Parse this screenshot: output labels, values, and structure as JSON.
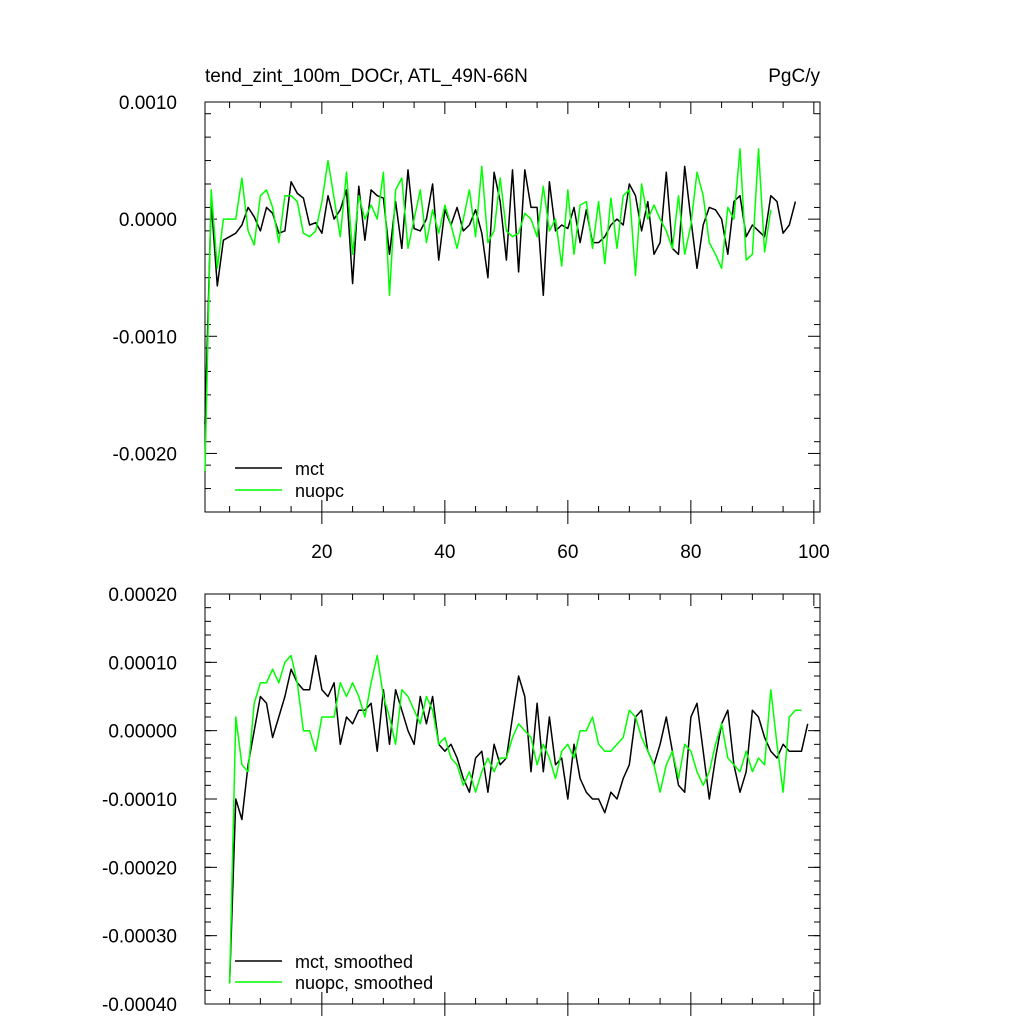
{
  "chart_data": [
    {
      "type": "line",
      "title": "tend_zint_100m_DOCr, ATL_49N-66N",
      "units": "PgC/y",
      "xlim": [
        1,
        101
      ],
      "ylim": [
        -0.0025,
        0.001
      ],
      "xticks": [
        20,
        40,
        60,
        80,
        100
      ],
      "xtick_labels": [
        "20",
        "40",
        "60",
        "80",
        "100"
      ],
      "yticks": [
        0.001,
        0,
        -0.001,
        -0.002
      ],
      "ytick_labels": [
        "0.0010",
        "0.0000",
        "-0.0010",
        "-0.0020"
      ],
      "legend": [
        "mct",
        "nuopc"
      ],
      "legend_position": "bottom-left",
      "series": [
        {
          "name": "mct",
          "color": "#000000",
          "values": [
            -0.00175,
            0.00015,
            -0.00057,
            -0.00018,
            -0.00015,
            -0.00012,
            -5e-05,
            0.0001,
            2e-05,
            -0.0001,
            0.0001,
            5e-05,
            -0.00012,
            -0.0001,
            0.00032,
            0.00022,
            0.00018,
            -5e-05,
            -3e-05,
            -0.00012,
            0.0002,
            0.0,
            8e-05,
            0.00025,
            -0.00055,
            0.00028,
            -0.00018,
            0.00025,
            0.0002,
            0.00018,
            -0.0003,
            0.00015,
            -0.00025,
            0.00042,
            -8e-05,
            -0.0001,
            0.0,
            0.0003,
            -0.00035,
            8e-05,
            -5e-05,
            0.0001,
            -0.0001,
            -5e-05,
            8e-05,
            -0.00012,
            -0.0005,
            0.0004,
            0.00015,
            -0.00035,
            0.00042,
            -0.00045,
            0.00042,
            0.0001,
            0.0001,
            -0.00065,
            0.00032,
            -0.0001,
            -5e-05,
            -8e-05,
            0.0001,
            -0.0002,
            8e-05,
            -0.0002,
            -0.0002,
            -0.00015,
            -5e-05,
            0.0,
            -5e-05,
            0.0003,
            0.0002,
            -0.0001,
            0.00015,
            -0.0003,
            -0.0002,
            0.0004,
            -0.00025,
            -0.0003,
            0.00045,
            0.0,
            -0.00042,
            -5e-05,
            0.0001,
            8e-05,
            0.0,
            -0.0003,
            0.00015,
            0.0002,
            -0.00015,
            -5e-05,
            -0.0001,
            -0.00015,
            0.0002,
            0.00015,
            -0.00012,
            -5e-05,
            0.00015
          ]
        },
        {
          "name": "nuopc",
          "color": "#00ff00",
          "values": [
            -0.00215,
            0.00025,
            -0.00042,
            0.0,
            0.0,
            0.0,
            0.00035,
            -0.0001,
            -0.00022,
            0.0002,
            0.00025,
            0.0001,
            -0.0002,
            0.0002,
            0.0002,
            0.00015,
            -0.00012,
            -0.00015,
            -0.0001,
            0.00015,
            0.0005,
            0.00018,
            -0.00015,
            0.0004,
            -0.0003,
            0.0002,
            0.0,
            0.00012,
            0.0,
            0.0004,
            -0.00065,
            0.00025,
            0.00035,
            -0.00025,
            0.0,
            0.00025,
            -0.0002,
            8e-05,
            -0.00012,
            0.00012,
            -5e-05,
            -0.00025,
            0.0,
            0.00025,
            -0.00015,
            0.00045,
            -0.0002,
            -0.0001,
            0.00035,
            -0.0001,
            -0.00015,
            -0.00012,
            5e-05,
            0.0,
            -0.00015,
            0.00028,
            -0.0001,
            0.0,
            -0.0004,
            0.00025,
            -0.0003,
            0.00012,
            0.00015,
            -0.00025,
            0.00015,
            -0.00038,
            0.00018,
            -0.00025,
            0.0002,
            0.00025,
            -0.00048,
            0.0003,
            0.0,
            0.00012,
            0.0,
            -0.0001,
            -0.00025,
            0.0002,
            -0.0003,
            -5e-05,
            0.0004,
            0.0002,
            -0.0002,
            -0.0003,
            -0.00042,
            0.0001,
            0.0,
            0.0006,
            -0.00035,
            -0.0003,
            0.0006,
            -0.00028,
            8e-05
          ]
        }
      ]
    },
    {
      "type": "line",
      "xlim": [
        1,
        101
      ],
      "ylim": [
        -0.0004,
        0.0002
      ],
      "xticks": [
        20,
        40,
        60,
        80,
        100
      ],
      "yticks": [
        0.0002,
        0.0001,
        0,
        -0.0001,
        -0.0002,
        -0.0003,
        -0.0004
      ],
      "ytick_labels": [
        "0.00020",
        "0.00010",
        "0.00000",
        "-0.00010",
        "-0.00020",
        "-0.00030",
        "-0.00040"
      ],
      "legend": [
        "mct, smoothed",
        "nuopc, smoothed"
      ],
      "legend_position": "bottom-left",
      "series": [
        {
          "name": "mct, smoothed",
          "color": "#000000",
          "x_start": 5,
          "values": [
            -0.00037,
            -0.0001,
            -0.00013,
            -5e-05,
            0.0,
            5e-05,
            4e-05,
            -1e-05,
            2e-05,
            5e-05,
            9e-05,
            7e-05,
            6e-05,
            6e-05,
            0.00011,
            6e-05,
            5e-05,
            7e-05,
            -2e-05,
            2e-05,
            1e-05,
            3e-05,
            3e-05,
            4e-05,
            -3e-05,
            6e-05,
            -2e-05,
            6e-05,
            3e-05,
            0.0,
            -2e-05,
            5e-05,
            1e-05,
            5e-05,
            -2e-05,
            -3e-05,
            -2e-05,
            -4e-05,
            -7e-05,
            -9e-05,
            -4e-05,
            -3e-05,
            -9e-05,
            -2e-05,
            -5e-05,
            -4e-05,
            2e-05,
            8e-05,
            5e-05,
            -6e-05,
            4e-05,
            -6e-05,
            2e-05,
            -5e-05,
            -4e-05,
            -0.0001,
            -2e-05,
            -7e-05,
            -9e-05,
            -0.0001,
            -0.0001,
            -0.00012,
            -9e-05,
            -0.0001,
            -7e-05,
            -5e-05,
            2e-05,
            3e-05,
            -3e-05,
            -5e-05,
            -2e-05,
            2e-05,
            -3e-05,
            -8e-05,
            -9e-05,
            2e-05,
            4e-05,
            -3e-05,
            -0.0001,
            -4e-05,
            1e-05,
            3e-05,
            -5e-05,
            -9e-05,
            -6e-05,
            3e-05,
            2e-05,
            -1e-05,
            -3e-05,
            -4e-05,
            -2e-05,
            -3e-05,
            -3e-05,
            -3e-05,
            1e-05
          ]
        },
        {
          "name": "nuopc, smoothed",
          "color": "#00ff00",
          "x_start": 5,
          "values": [
            -0.00037,
            2e-05,
            -5e-05,
            -6e-05,
            4e-05,
            7e-05,
            7e-05,
            9e-05,
            7e-05,
            0.0001,
            0.00011,
            7e-05,
            0.0,
            0.0,
            -3e-05,
            2e-05,
            2e-05,
            2e-05,
            7e-05,
            5e-05,
            7e-05,
            5e-05,
            2e-05,
            7e-05,
            0.00011,
            5e-05,
            2e-05,
            -2e-05,
            6e-05,
            5e-05,
            3e-05,
            1e-05,
            5e-05,
            3e-05,
            -2e-05,
            -1e-05,
            -4e-05,
            -5e-05,
            -8e-05,
            -6e-05,
            -9e-05,
            -6e-05,
            -4e-05,
            -6e-05,
            -4e-05,
            -4e-05,
            -1e-05,
            1e-05,
            0.0,
            -1e-05,
            -5e-05,
            -2e-05,
            -4e-05,
            -7e-05,
            -3e-05,
            -2e-05,
            -4e-05,
            0.0,
            0.0,
            2e-05,
            -2e-05,
            -3e-05,
            -3e-05,
            -2e-05,
            -1e-05,
            3e-05,
            2e-05,
            -1e-05,
            -3e-05,
            -5e-05,
            -9e-05,
            -5e-05,
            -3e-05,
            -7e-05,
            -2e-05,
            -3e-05,
            -6e-05,
            -8e-05,
            -6e-05,
            -2e-05,
            1e-05,
            -4e-05,
            -5e-05,
            -6e-05,
            -3e-05,
            -6e-05,
            -4e-05,
            -5e-05,
            6e-05,
            -2e-05,
            -9e-05,
            2e-05,
            3e-05,
            3e-05
          ]
        }
      ]
    }
  ]
}
